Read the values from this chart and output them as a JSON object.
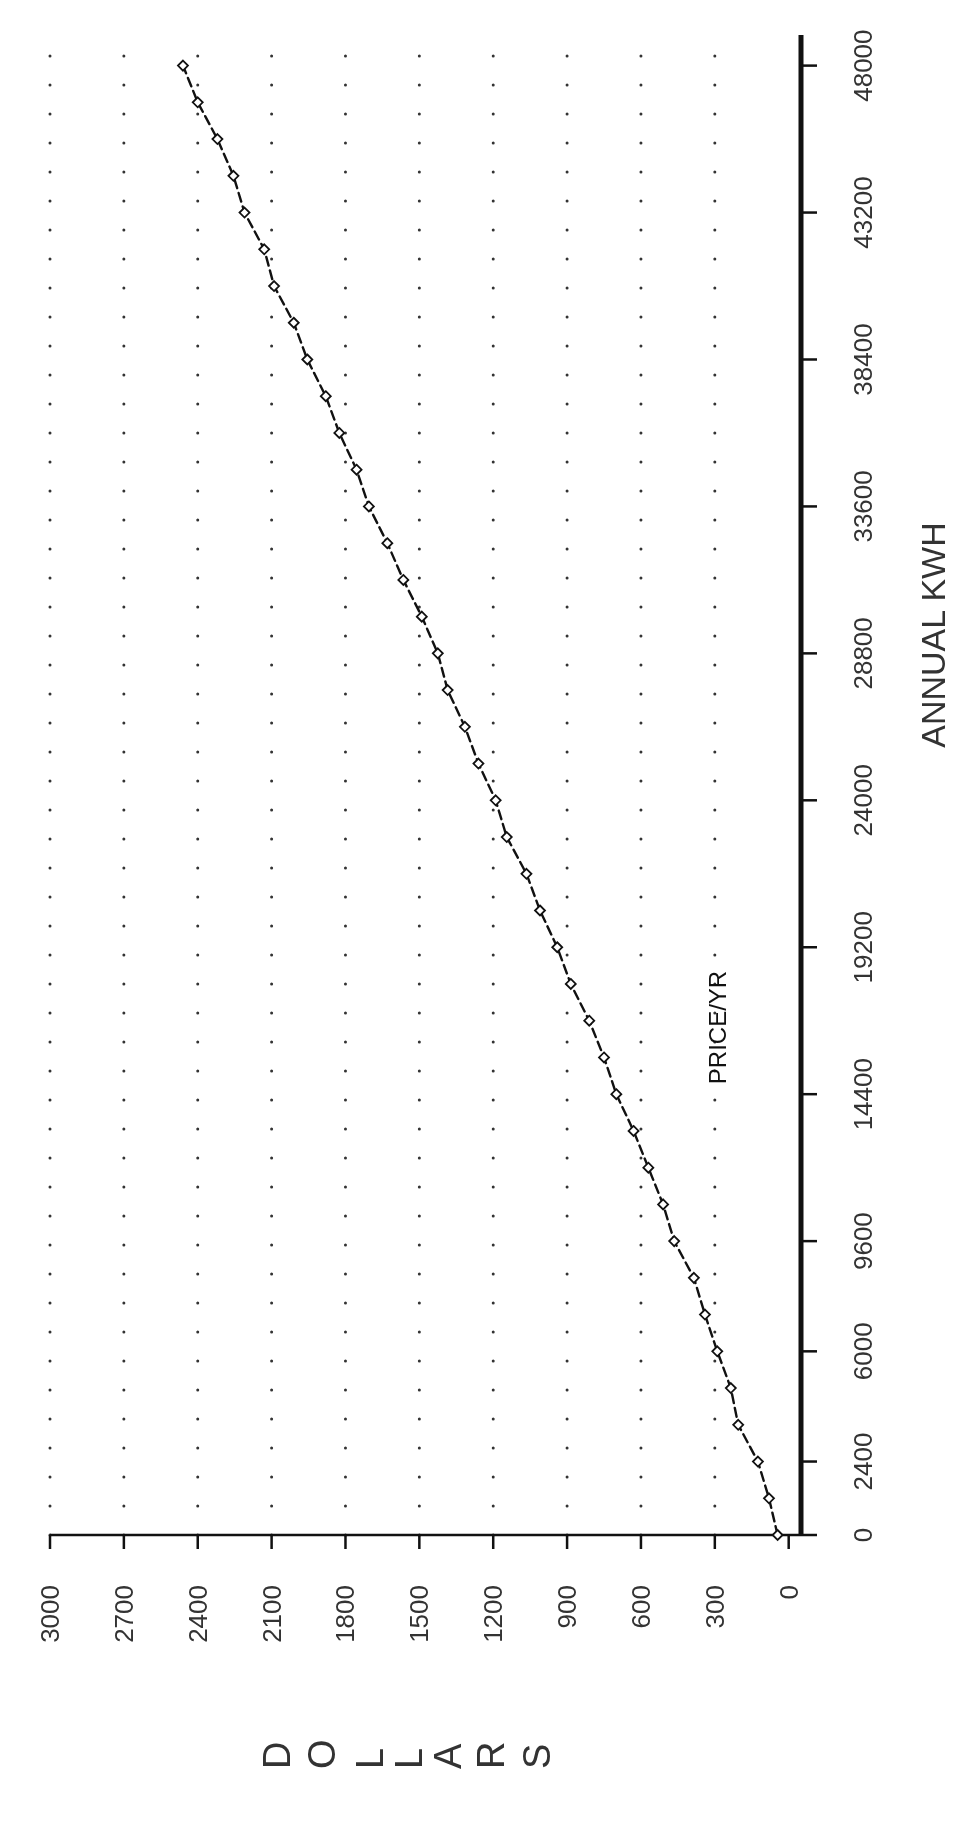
{
  "chart_data": {
    "type": "line",
    "xlabel": "DOLLARS",
    "ylabel": "ANNUAL KWH",
    "x": [
      45,
      80,
      125,
      205,
      235,
      290,
      340,
      385,
      465,
      510,
      570,
      630,
      700,
      750,
      810,
      885,
      940,
      1010,
      1065,
      1145,
      1190,
      1260,
      1315,
      1385,
      1425,
      1490,
      1565,
      1630,
      1705,
      1755,
      1825,
      1880,
      1955,
      2010,
      2090,
      2130,
      2210,
      2255,
      2320,
      2400,
      2460
    ],
    "series": [
      {
        "name": "PRICE/YR",
        "color": "#111111",
        "values": [
          0,
          1200,
          2400,
          3600,
          4800,
          6000,
          7200,
          8400,
          9600,
          10800,
          12000,
          13200,
          14400,
          15600,
          16800,
          18000,
          19200,
          20400,
          21600,
          22800,
          24000,
          25200,
          26400,
          27600,
          28800,
          30000,
          31200,
          32400,
          33600,
          34800,
          36000,
          37200,
          38400,
          39600,
          40800,
          42000,
          43200,
          44400,
          45600,
          46800,
          48000
        ]
      }
    ],
    "xlim": [
      3000,
      -50
    ],
    "xticks": [
      0,
      300,
      600,
      900,
      1200,
      1500,
      1800,
      2100,
      2400,
      2700,
      3000
    ],
    "ylim": [
      0,
      49000
    ],
    "yticks": [
      0,
      2400,
      6000,
      9600,
      14400,
      19200,
      24000,
      28800,
      33600,
      38400,
      43200,
      48000
    ],
    "grid": "x",
    "marker": "diamond",
    "line_style": "dashed"
  }
}
